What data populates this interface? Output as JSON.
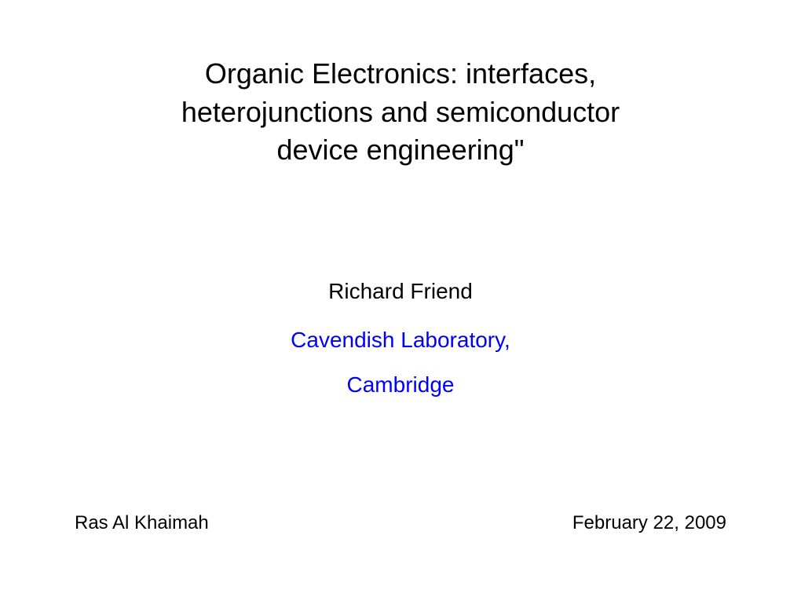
{
  "slide": {
    "title_line1": "Organic Electronics: interfaces,",
    "title_line2": "heterojunctions and semiconductor",
    "title_line3": "device engineering\"",
    "author": "Richard Friend",
    "affiliation_line1": "Cavendish Laboratory,",
    "affiliation_line2": "Cambridge",
    "location": "Ras Al Khaimah",
    "date": "February  22, 2009"
  },
  "style": {
    "background_color": "#ffffff",
    "title_color": "#000000",
    "title_fontsize": 36,
    "author_color": "#000000",
    "author_fontsize": 28,
    "affiliation_color": "#0000ff",
    "affiliation_fontsize": 28,
    "footer_color": "#000000",
    "footer_fontsize": 24,
    "font_family": "Arial"
  }
}
